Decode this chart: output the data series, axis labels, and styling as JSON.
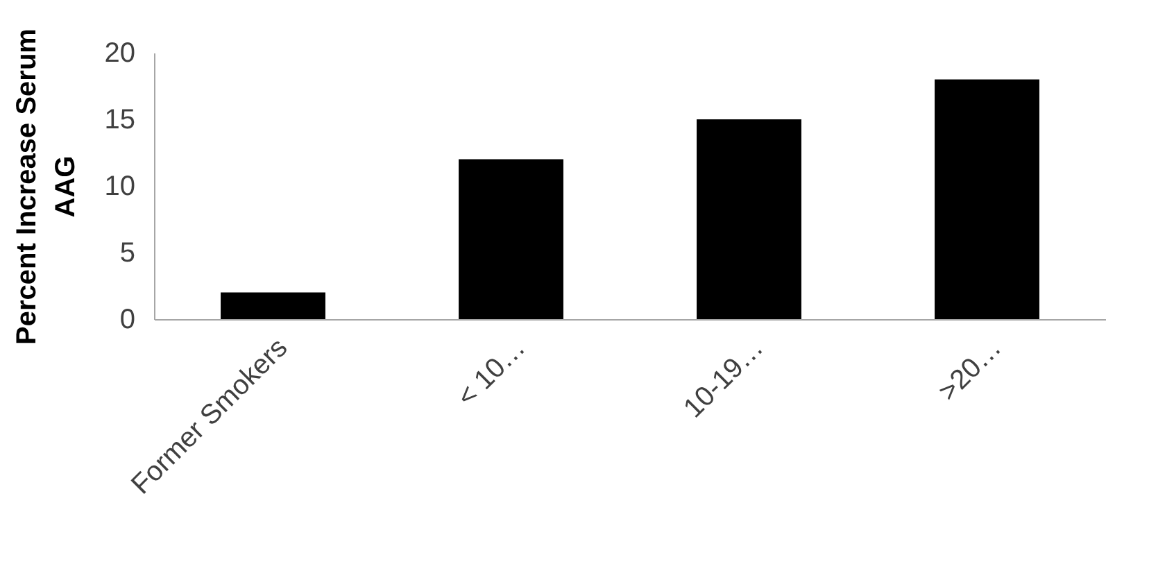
{
  "chart_data": {
    "type": "bar",
    "ylabel": "Percent Increase Serum AAG",
    "categories": [
      "Former Smokers",
      "< 10…",
      "10-19…",
      ">20…"
    ],
    "values": [
      2,
      12,
      15,
      18
    ],
    "color": "#000000",
    "ylim": [
      0,
      20
    ],
    "yticks": [
      0,
      5,
      10,
      15,
      20
    ],
    "grid": false
  }
}
